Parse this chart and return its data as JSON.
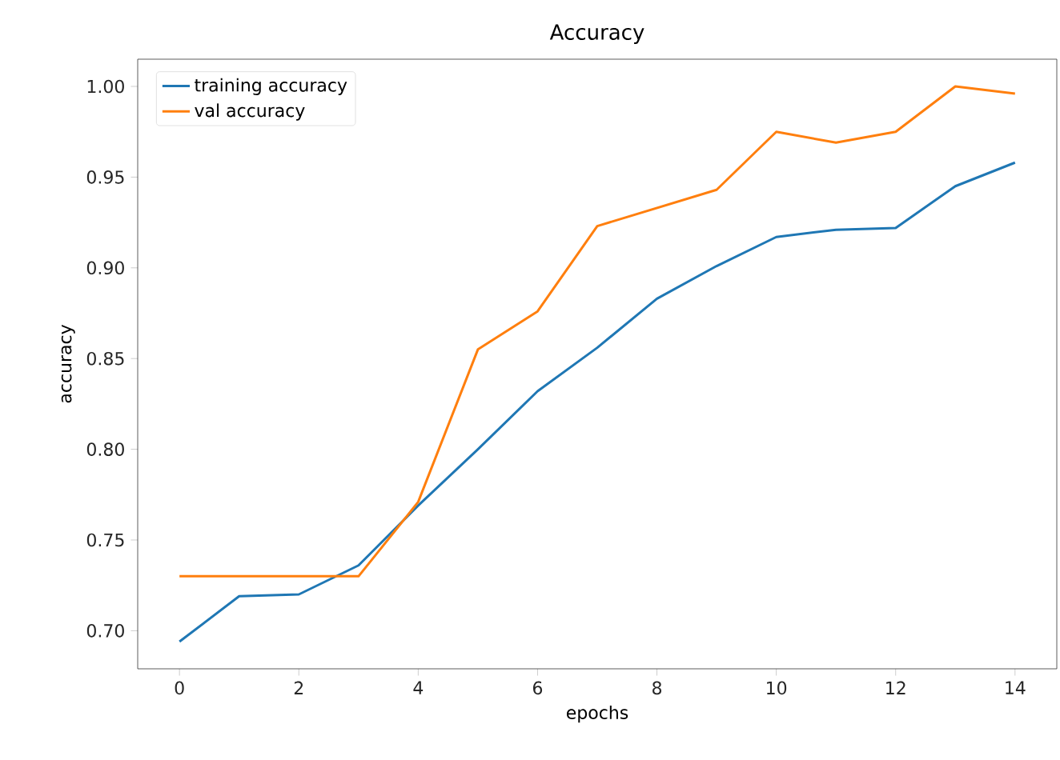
{
  "chart_data": {
    "type": "line",
    "title": "Accuracy",
    "xlabel": "epochs",
    "ylabel": "accuracy",
    "x": [
      0,
      1,
      2,
      3,
      4,
      5,
      6,
      7,
      8,
      9,
      10,
      11,
      12,
      13,
      14
    ],
    "series": [
      {
        "name": "training accuracy",
        "color": "#1f77b4",
        "values": [
          0.694,
          0.719,
          0.72,
          0.736,
          0.769,
          0.8,
          0.832,
          0.856,
          0.883,
          0.901,
          0.917,
          0.921,
          0.922,
          0.945,
          0.958
        ]
      },
      {
        "name": "val accuracy",
        "color": "#ff7f0e",
        "values": [
          0.73,
          0.73,
          0.73,
          0.73,
          0.771,
          0.855,
          0.876,
          0.923,
          0.933,
          0.943,
          0.975,
          0.969,
          0.975,
          1.0,
          0.996
        ]
      }
    ],
    "xlim": [
      -0.7,
      14.7
    ],
    "ylim": [
      0.679,
      1.015
    ],
    "xticks": [
      0,
      2,
      4,
      6,
      8,
      10,
      12,
      14
    ],
    "yticks": [
      {
        "value": 0.7,
        "label": "0.70"
      },
      {
        "value": 0.75,
        "label": "0.75"
      },
      {
        "value": 0.8,
        "label": "0.80"
      },
      {
        "value": 0.85,
        "label": "0.85"
      },
      {
        "value": 0.9,
        "label": "0.90"
      },
      {
        "value": 0.95,
        "label": "0.95"
      },
      {
        "value": 1.0,
        "label": "1.00"
      }
    ],
    "legend": "top left",
    "grid": false,
    "line_style": "solid",
    "marker": "none"
  }
}
